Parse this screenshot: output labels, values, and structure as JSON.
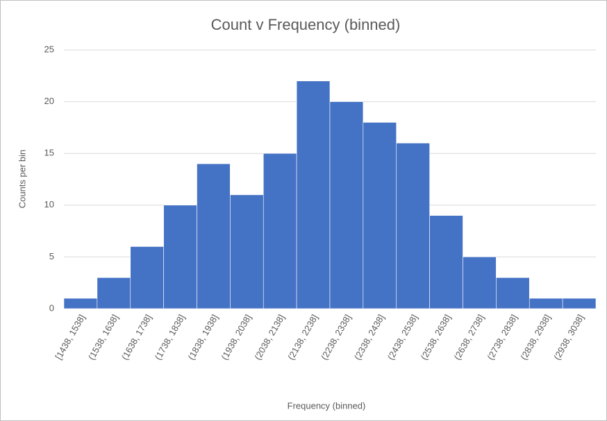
{
  "chart_data": {
    "type": "bar",
    "title": "Count v Frequency (binned)",
    "x_label": "Frequency (binned)",
    "y_label": "Counts per bin",
    "categories": [
      "[1438, 1538]",
      "(1538, 1638]",
      "(1638, 1738]",
      "(1738, 1838]",
      "(1838, 1938]",
      "(1938, 2038]",
      "(2038, 2138]",
      "(2138, 2238]",
      "(2238, 2338]",
      "(2338, 2438]",
      "(2438, 2538]",
      "(2538, 2638]",
      "(2638, 2738]",
      "(2738, 2838]",
      "(2838, 2938]",
      "(2938, 3038]"
    ],
    "values": [
      1,
      3,
      6,
      10,
      14,
      11,
      15,
      22,
      20,
      18,
      16,
      9,
      5,
      3,
      1,
      1
    ],
    "color": "#4472c4",
    "ylim": [
      0,
      25
    ],
    "yticks": [
      0,
      5,
      10,
      15,
      20,
      25
    ],
    "grid": true
  }
}
